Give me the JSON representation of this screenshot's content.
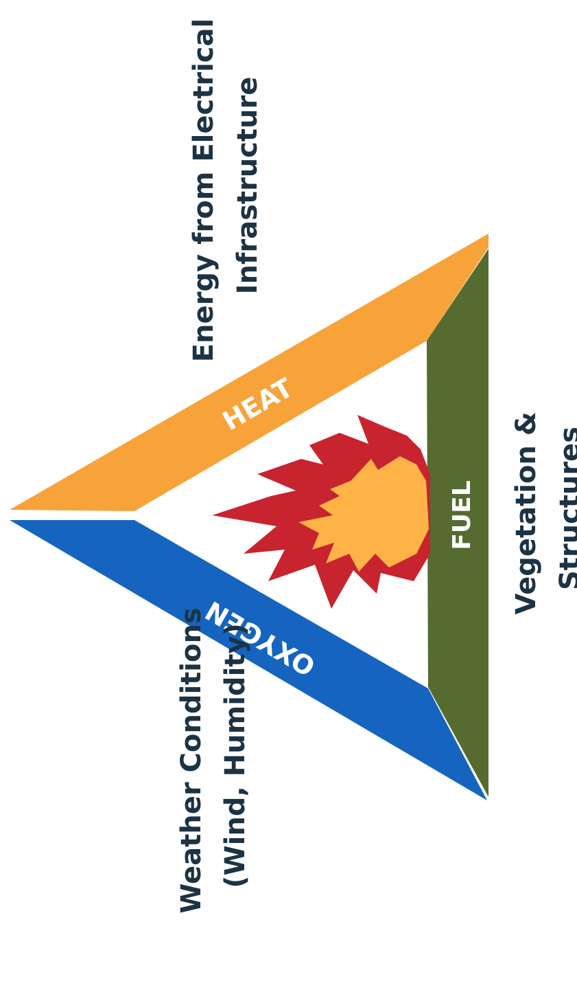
{
  "triangle": {
    "heat": {
      "label": "HEAT",
      "color": "#f7a33a"
    },
    "oxygen": {
      "label": "OXYGEN",
      "color": "#1565c0"
    },
    "fuel": {
      "label": "FUEL",
      "color": "#556b2f"
    }
  },
  "flame": {
    "outer_color": "#c8242f",
    "inner_color": "#ffb347"
  },
  "captions": {
    "heat": {
      "line1": "Energy from Electrical",
      "line2": "Infrastructure"
    },
    "fuel": {
      "line1": "Vegetation &",
      "line2": "Structures"
    },
    "oxygen": {
      "line1": "Weather Conditions",
      "line2": "(Wind, Humidity)"
    }
  }
}
